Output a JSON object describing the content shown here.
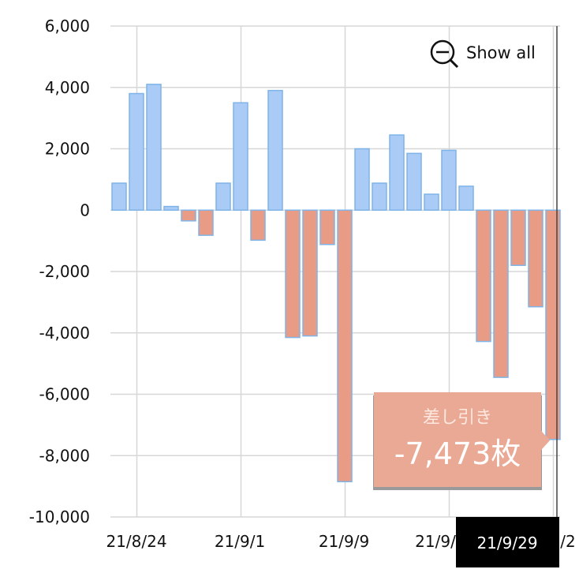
{
  "chart_data": {
    "type": "bar",
    "title": "",
    "xlabel": "",
    "ylabel": "",
    "ylim": [
      -10000,
      6000
    ],
    "yticks": [
      6000,
      4000,
      2000,
      0,
      -2000,
      -4000,
      -6000,
      -8000,
      -10000
    ],
    "ytick_labels": [
      "6,000",
      "4,000",
      "2,000",
      "0",
      "-2,000",
      "-4,000",
      "-6,000",
      "-8,000",
      "-10,000"
    ],
    "xtick_labels": [
      "21/8/24",
      "21/9/1",
      "21/9/9",
      "21/9/",
      "/2"
    ],
    "values": [
      880,
      3800,
      4100,
      120,
      -350,
      -820,
      880,
      3500,
      -980,
      3900,
      -4150,
      -4100,
      -1120,
      -8850,
      2000,
      880,
      2450,
      1850,
      520,
      1950,
      780,
      -4280,
      -5450,
      -1800,
      -3150,
      -7473
    ],
    "grid": true,
    "colors": {
      "positive": "#a9cbf6",
      "negative": "#e99c85",
      "border": "#7fb4e8"
    }
  },
  "zoom": {
    "icon": "zoom-out-icon",
    "label": "Show all"
  },
  "tooltip": {
    "title": "差し引き",
    "value": "-7,473枚",
    "color": "#e9a48f"
  },
  "cursor_label": "21/9/29"
}
